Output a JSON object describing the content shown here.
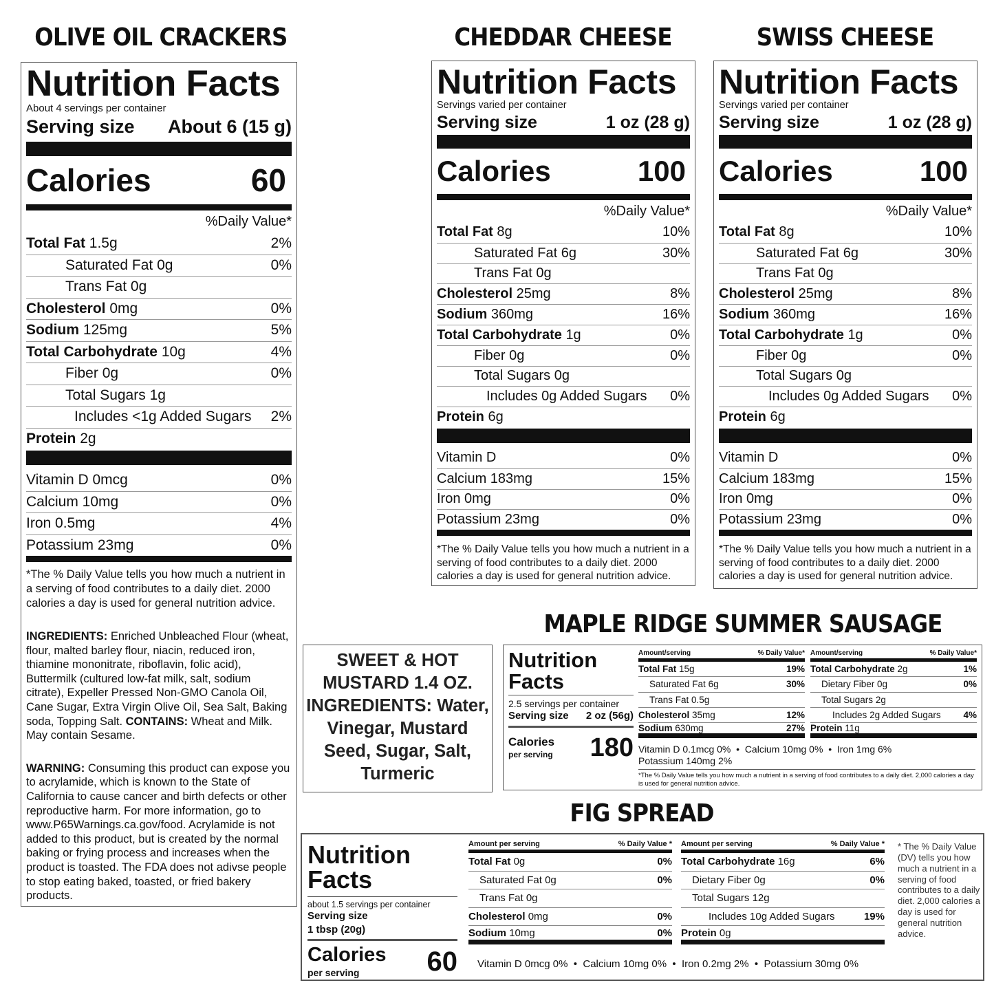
{
  "crackers": {
    "title": "OLIVE OIL CRACKERS",
    "nf_title": "Nutrition Facts",
    "servings": "About 4 servings per container",
    "serving_label": "Serving size",
    "serving_value": "About 6 (15 g)",
    "calories_label": "Calories",
    "calories": "60",
    "dv_header": "%Daily Value*",
    "nutrients": [
      {
        "name": "Total Fat",
        "amount": "1.5g",
        "dv": "2%",
        "bold": true,
        "indent": 0
      },
      {
        "name": "Saturated Fat",
        "amount": "0g",
        "dv": "0%",
        "bold": false,
        "indent": 1
      },
      {
        "name": "Trans Fat",
        "amount": "0g",
        "dv": "",
        "bold": false,
        "indent": 1
      },
      {
        "name": "Cholesterol",
        "amount": "0mg",
        "dv": "0%",
        "bold": true,
        "indent": 0
      },
      {
        "name": "Sodium",
        "amount": "125mg",
        "dv": "5%",
        "bold": true,
        "indent": 0
      },
      {
        "name": "Total Carbohydrate",
        "amount": "10g",
        "dv": "4%",
        "bold": true,
        "indent": 0
      },
      {
        "name": "Fiber",
        "amount": "0g",
        "dv": "0%",
        "bold": false,
        "indent": 1
      },
      {
        "name": "Total Sugars",
        "amount": "1g",
        "dv": "",
        "bold": false,
        "indent": 1
      },
      {
        "name": "Includes",
        "amount": "<1g Added Sugars",
        "dv": "2%",
        "bold": false,
        "indent": 2
      },
      {
        "name": "Protein",
        "amount": "2g",
        "dv": "",
        "bold": true,
        "indent": 0
      }
    ],
    "vitamins": [
      {
        "name": "Vitamin D 0mcg",
        "dv": "0%"
      },
      {
        "name": "Calcium 10mg",
        "dv": "0%"
      },
      {
        "name": "Iron 0.5mg",
        "dv": "4%"
      },
      {
        "name": "Potassium 23mg",
        "dv": "0%"
      }
    ],
    "footnote": "*The % Daily Value tells you how much a nutrient in a serving of food contributes to a daily diet. 2000 calories a day is used for general nutrition advice.",
    "ingredients": [
      {
        "text": "INGREDIENTS:",
        "bold": true
      },
      {
        "text": " Enriched Unbleached Flour (wheat, flour, malted barley flour, niacin, reduced iron, thiamine mononitrate, riboflavin, folic acid), Buttermilk (cultured low-fat milk, salt, sodium citrate), Expeller Pressed Non-GMO Canola Oil, Cane Sugar, Extra Virgin Olive Oil, Sea Salt, Baking soda, Topping Salt. ",
        "bold": false
      },
      {
        "text": "CONTAINS:",
        "bold": true
      },
      {
        "text": " Wheat and Milk. May contain Sesame.",
        "bold": false
      }
    ],
    "warning": [
      {
        "text": "WARNING:",
        "bold": true
      },
      {
        "text": " Consuming this product can expose you to acrylamide, which is known to the State of California to cause cancer and birth defects or other reproductive harm. For more information, go to www.P65Warnings.ca.gov/food. Acrylamide is not added to this product, but is created by the normal baking or frying process and increases when the product is toasted. The FDA does not adivse people to stop eating baked, toasted, or fried bakery products.",
        "bold": false
      }
    ]
  },
  "cheddar": {
    "title": "CHEDDAR CHEESE",
    "nf_title": "Nutrition Facts",
    "servings": "Servings varied per container",
    "serving_label": "Serving size",
    "serving_value": "1 oz (28 g)",
    "calories_label": "Calories",
    "calories": "100",
    "dv_header": "%Daily Value*",
    "nutrients": [
      {
        "name": "Total Fat",
        "amount": "8g",
        "dv": "10%",
        "bold": true,
        "indent": 0
      },
      {
        "name": "Saturated Fat",
        "amount": "6g",
        "dv": "30%",
        "bold": false,
        "indent": 1
      },
      {
        "name": "Trans Fat",
        "amount": "0g",
        "dv": "",
        "bold": false,
        "indent": 1
      },
      {
        "name": "Cholesterol",
        "amount": "25mg",
        "dv": "8%",
        "bold": true,
        "indent": 0
      },
      {
        "name": "Sodium",
        "amount": "360mg",
        "dv": "16%",
        "bold": true,
        "indent": 0
      },
      {
        "name": "Total Carbohydrate",
        "amount": "1g",
        "dv": "0%",
        "bold": true,
        "indent": 0
      },
      {
        "name": "Fiber",
        "amount": "0g",
        "dv": "0%",
        "bold": false,
        "indent": 1
      },
      {
        "name": "Total Sugars",
        "amount": "0g",
        "dv": "",
        "bold": false,
        "indent": 1
      },
      {
        "name": "Includes",
        "amount": "0g Added Sugars",
        "dv": "0%",
        "bold": false,
        "indent": 2
      },
      {
        "name": "Protein",
        "amount": "6g",
        "dv": "",
        "bold": true,
        "indent": 0
      }
    ],
    "vitamins": [
      {
        "name": "Vitamin D",
        "dv": "0%"
      },
      {
        "name": "Calcium 183mg",
        "dv": "15%"
      },
      {
        "name": "Iron 0mg",
        "dv": "0%"
      },
      {
        "name": "Potassium 23mg",
        "dv": "0%"
      }
    ],
    "footnote": "*The % Daily Value tells you how much a nutrient in a serving of food contributes to a daily diet. 2000 calories a day is used for general nutrition advice."
  },
  "swiss": {
    "title": "SWISS CHEESE",
    "nf_title": "Nutrition Facts",
    "servings": "Servings varied per container",
    "serving_label": "Serving size",
    "serving_value": "1 oz (28 g)",
    "calories_label": "Calories",
    "calories": "100",
    "dv_header": "%Daily Value*",
    "nutrients": [
      {
        "name": "Total Fat",
        "amount": "8g",
        "dv": "10%",
        "bold": true,
        "indent": 0
      },
      {
        "name": "Saturated Fat",
        "amount": "6g",
        "dv": "30%",
        "bold": false,
        "indent": 1
      },
      {
        "name": "Trans Fat",
        "amount": "0g",
        "dv": "",
        "bold": false,
        "indent": 1
      },
      {
        "name": "Cholesterol",
        "amount": "25mg",
        "dv": "8%",
        "bold": true,
        "indent": 0
      },
      {
        "name": "Sodium",
        "amount": "360mg",
        "dv": "16%",
        "bold": true,
        "indent": 0
      },
      {
        "name": "Total Carbohydrate",
        "amount": "1g",
        "dv": "0%",
        "bold": true,
        "indent": 0
      },
      {
        "name": "Fiber",
        "amount": "0g",
        "dv": "0%",
        "bold": false,
        "indent": 1
      },
      {
        "name": "Total Sugars",
        "amount": "0g",
        "dv": "",
        "bold": false,
        "indent": 1
      },
      {
        "name": "Includes",
        "amount": "0g Added Sugars",
        "dv": "0%",
        "bold": false,
        "indent": 2
      },
      {
        "name": "Protein",
        "amount": "6g",
        "dv": "",
        "bold": true,
        "indent": 0
      }
    ],
    "vitamins": [
      {
        "name": "Vitamin D",
        "dv": "0%"
      },
      {
        "name": "Calcium 183mg",
        "dv": "15%"
      },
      {
        "name": "Iron 0mg",
        "dv": "0%"
      },
      {
        "name": "Potassium 23mg",
        "dv": "0%"
      }
    ],
    "footnote": "*The % Daily Value tells you how much a nutrient in a serving of food contributes to a daily diet. 2000 calories a day is used for general nutrition advice."
  },
  "mustard": {
    "text": "SWEET & HOT MUSTARD 1.4 OZ. INGREDIENTS: Water, Vinegar, Mustard Seed, Sugar, Salt, Turmeric"
  },
  "sausage": {
    "title": "MAPLE RIDGE SUMMER SAUSAGE",
    "nf_title_1": "Nutrition",
    "nf_title_2": "Facts",
    "servings": "2.5 servings per container",
    "serving_label": "Serving size",
    "serving_value": "2 oz (56g)",
    "calories_label": "Calories",
    "calories_sub": "per serving",
    "calories": "180",
    "columns": [
      {
        "amount_header": "Amount/serving",
        "dv_header": "% Daily Value*",
        "rows": [
          {
            "name": "Total Fat",
            "amount": "15g",
            "dv": "19%",
            "bold": true,
            "indent": 0
          },
          {
            "name": "Saturated Fat",
            "amount": "6g",
            "dv": "30%",
            "bold": false,
            "indent": 1
          },
          {
            "name": "Trans Fat",
            "amount": "0.5g",
            "dv": "",
            "bold": false,
            "indent": 1
          },
          {
            "name": "Cholesterol",
            "amount": "35mg",
            "dv": "12%",
            "bold": true,
            "indent": 0
          },
          {
            "name": "Sodium",
            "amount": "630mg",
            "dv": "27%",
            "bold": true,
            "indent": 0
          }
        ]
      },
      {
        "amount_header": "Amount/serving",
        "dv_header": "% Daily Value*",
        "rows": [
          {
            "name": "Total Carbohydrate",
            "amount": "2g",
            "dv": "1%",
            "bold": true,
            "indent": 0
          },
          {
            "name": "Dietary Fiber",
            "amount": "0g",
            "dv": "0%",
            "bold": false,
            "indent": 1
          },
          {
            "name": "Total Sugars",
            "amount": "2g",
            "dv": "",
            "bold": false,
            "indent": 1
          },
          {
            "name": "Includes",
            "amount": "2g Added Sugars",
            "dv": "4%",
            "bold": false,
            "indent": 2
          },
          {
            "name": "Protein",
            "amount": "11g",
            "dv": "",
            "bold": true,
            "indent": 0
          }
        ]
      }
    ],
    "vitamin_lines": [
      "Vitamin D 0.1mcg 0%  •  Calcium 10mg 0%  •  Iron 1mg 6%",
      "Potassium 140mg 2%"
    ],
    "footnote": "*The % Daily Value tells you how much a nutrient in a serving of food contributes to a daily diet. 2,000 calories a day is used for general nutrition advice."
  },
  "fig": {
    "title": "FIG SPREAD",
    "nf_title_1": "Nutrition",
    "nf_title_2": "Facts",
    "servings": "about 1.5 servings per container",
    "serving_label": "Serving size",
    "serving_value": "1 tbsp (20g)",
    "calories_label": "Calories",
    "calories_sub": "per serving",
    "calories": "60",
    "columns": [
      {
        "amount_header": "Amount per serving",
        "dv_header": "% Daily Value *",
        "rows": [
          {
            "name": "Total Fat",
            "amount": "0g",
            "dv": "0%",
            "bold": true,
            "indent": 0
          },
          {
            "name": "Saturated Fat",
            "amount": "0g",
            "dv": "0%",
            "bold": false,
            "indent": 1
          },
          {
            "name": "Trans Fat",
            "amount": "0g",
            "dv": "",
            "bold": false,
            "indent": 1
          },
          {
            "name": "Cholesterol",
            "amount": "0mg",
            "dv": "0%",
            "bold": true,
            "indent": 0
          },
          {
            "name": "Sodium",
            "amount": "10mg",
            "dv": "0%",
            "bold": true,
            "indent": 0
          }
        ]
      },
      {
        "amount_header": "Amount per serving",
        "dv_header": "% Daily Value *",
        "rows": [
          {
            "name": "Total Carbohydrate",
            "amount": "16g",
            "dv": "6%",
            "bold": true,
            "indent": 0
          },
          {
            "name": "Dietary Fiber",
            "amount": "0g",
            "dv": "0%",
            "bold": false,
            "indent": 1
          },
          {
            "name": "Total Sugars",
            "amount": "12g",
            "dv": "",
            "bold": false,
            "indent": 1
          },
          {
            "name": "Includes",
            "amount": "10g Added Sugars",
            "dv": "19%",
            "bold": false,
            "indent": 2
          },
          {
            "name": "Protein",
            "amount": "0g",
            "dv": "",
            "bold": true,
            "indent": 0
          }
        ]
      }
    ],
    "vitamin_lines": [
      "Vitamin D 0mcg 0%  •  Calcium 10mg 0%  •  Iron 0.2mg 2%  •  Potassium 30mg 0%"
    ],
    "footnote": "* The % Daily Value (DV) tells you how much a nutrient in a serving of food contributes to a daily diet. 2,000 calories a day is used for general nutrition advice."
  }
}
